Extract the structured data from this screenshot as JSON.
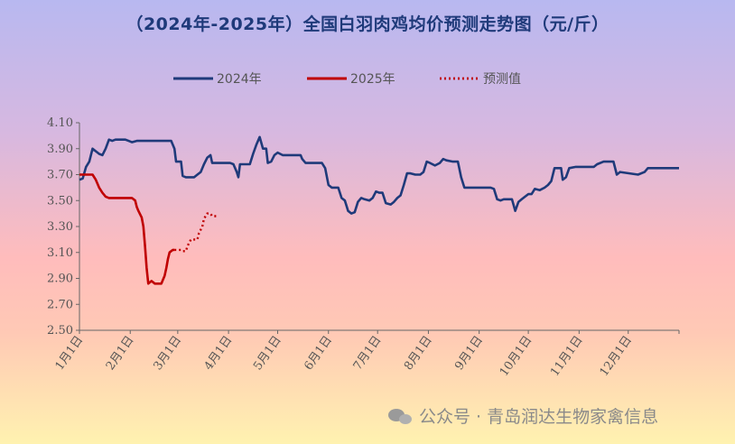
{
  "title": "（2024年-2025年）全国白羽肉鸡均价预测走势图（元/斤）",
  "watermark": "公众号 · 青岛润达生物家禽信息",
  "colors": {
    "s2024": "#1f3a7a",
    "s2025": "#c00000",
    "forecast": "#c00000"
  },
  "chart_data": {
    "type": "line",
    "title": "（2024年-2025年）全国白羽肉鸡均价预测走势图（元/斤）",
    "ylim": [
      2.5,
      4.1
    ],
    "yticks": [
      "4.10",
      "3.90",
      "3.70",
      "3.50",
      "3.30",
      "3.10",
      "2.90",
      "2.70",
      "2.50"
    ],
    "xticks": [
      "1月1日",
      "2月1日",
      "3月1日",
      "4月1日",
      "5月1日",
      "6月1日",
      "7月1日",
      "8月1日",
      "9月1日",
      "10月1日",
      "11月1日",
      "12月1日"
    ],
    "xlim_days": [
      0,
      366
    ],
    "legend_position": "top",
    "series": [
      {
        "name": "2024年",
        "style": "solid",
        "points": [
          [
            0,
            3.66
          ],
          [
            2,
            3.67
          ],
          [
            4,
            3.76
          ],
          [
            6,
            3.8
          ],
          [
            8,
            3.9
          ],
          [
            10,
            3.88
          ],
          [
            12,
            3.86
          ],
          [
            14,
            3.85
          ],
          [
            16,
            3.9
          ],
          [
            18,
            3.97
          ],
          [
            20,
            3.96
          ],
          [
            22,
            3.97
          ],
          [
            26,
            3.97
          ],
          [
            28,
            3.97
          ],
          [
            30,
            3.96
          ],
          [
            32,
            3.95
          ],
          [
            35,
            3.96
          ],
          [
            45,
            3.96
          ],
          [
            50,
            3.96
          ],
          [
            54,
            3.96
          ],
          [
            56,
            3.96
          ],
          [
            58,
            3.9
          ],
          [
            59,
            3.8
          ],
          [
            62,
            3.8
          ],
          [
            63,
            3.69
          ],
          [
            65,
            3.68
          ],
          [
            68,
            3.68
          ],
          [
            70,
            3.68
          ],
          [
            72,
            3.7
          ],
          [
            74,
            3.72
          ],
          [
            76,
            3.78
          ],
          [
            78,
            3.83
          ],
          [
            80,
            3.85
          ],
          [
            81,
            3.79
          ],
          [
            84,
            3.79
          ],
          [
            92,
            3.79
          ],
          [
            94,
            3.78
          ],
          [
            96,
            3.72
          ],
          [
            97,
            3.68
          ],
          [
            98,
            3.78
          ],
          [
            104,
            3.78
          ],
          [
            106,
            3.86
          ],
          [
            108,
            3.93
          ],
          [
            110,
            3.99
          ],
          [
            112,
            3.9
          ],
          [
            114,
            3.9
          ],
          [
            115,
            3.79
          ],
          [
            117,
            3.8
          ],
          [
            119,
            3.85
          ],
          [
            121,
            3.87
          ],
          [
            124,
            3.85
          ],
          [
            135,
            3.85
          ],
          [
            136,
            3.82
          ],
          [
            138,
            3.79
          ],
          [
            145,
            3.79
          ],
          [
            148,
            3.79
          ],
          [
            150,
            3.75
          ],
          [
            152,
            3.62
          ],
          [
            154,
            3.6
          ],
          [
            158,
            3.6
          ],
          [
            160,
            3.52
          ],
          [
            162,
            3.5
          ],
          [
            164,
            3.42
          ],
          [
            166,
            3.4
          ],
          [
            168,
            3.41
          ],
          [
            170,
            3.49
          ],
          [
            172,
            3.52
          ],
          [
            174,
            3.51
          ],
          [
            177,
            3.5
          ],
          [
            179,
            3.52
          ],
          [
            181,
            3.57
          ],
          [
            183,
            3.56
          ],
          [
            185,
            3.56
          ],
          [
            187,
            3.48
          ],
          [
            190,
            3.47
          ],
          [
            192,
            3.49
          ],
          [
            194,
            3.52
          ],
          [
            196,
            3.54
          ],
          [
            198,
            3.62
          ],
          [
            200,
            3.71
          ],
          [
            202,
            3.71
          ],
          [
            205,
            3.7
          ],
          [
            208,
            3.7
          ],
          [
            210,
            3.72
          ],
          [
            212,
            3.8
          ],
          [
            214,
            3.79
          ],
          [
            217,
            3.77
          ],
          [
            220,
            3.79
          ],
          [
            222,
            3.82
          ],
          [
            224,
            3.81
          ],
          [
            228,
            3.8
          ],
          [
            231,
            3.8
          ],
          [
            233,
            3.68
          ],
          [
            235,
            3.6
          ],
          [
            239,
            3.6
          ],
          [
            249,
            3.6
          ],
          [
            251,
            3.6
          ],
          [
            253,
            3.59
          ],
          [
            255,
            3.51
          ],
          [
            257,
            3.5
          ],
          [
            259,
            3.51
          ],
          [
            264,
            3.51
          ],
          [
            266,
            3.42
          ],
          [
            268,
            3.49
          ],
          [
            270,
            3.51
          ],
          [
            272,
            3.53
          ],
          [
            274,
            3.55
          ],
          [
            276,
            3.55
          ],
          [
            278,
            3.59
          ],
          [
            281,
            3.58
          ],
          [
            284,
            3.6
          ],
          [
            286,
            3.62
          ],
          [
            288,
            3.65
          ],
          [
            290,
            3.75
          ],
          [
            294,
            3.75
          ],
          [
            295,
            3.66
          ],
          [
            297,
            3.68
          ],
          [
            299,
            3.75
          ],
          [
            303,
            3.76
          ],
          [
            314,
            3.76
          ],
          [
            316,
            3.78
          ],
          [
            320,
            3.8
          ],
          [
            326,
            3.8
          ],
          [
            328,
            3.7
          ],
          [
            330,
            3.72
          ],
          [
            341,
            3.7
          ],
          [
            345,
            3.72
          ],
          [
            347,
            3.75
          ],
          [
            352,
            3.75
          ],
          [
            366,
            3.75
          ]
        ]
      },
      {
        "name": "2025年",
        "style": "solid",
        "points": [
          [
            0,
            3.7
          ],
          [
            2,
            3.7
          ],
          [
            8,
            3.7
          ],
          [
            10,
            3.66
          ],
          [
            12,
            3.6
          ],
          [
            14,
            3.56
          ],
          [
            16,
            3.53
          ],
          [
            18,
            3.52
          ],
          [
            20,
            3.52
          ],
          [
            32,
            3.52
          ],
          [
            34,
            3.5
          ],
          [
            35,
            3.45
          ],
          [
            36,
            3.42
          ],
          [
            38,
            3.37
          ],
          [
            39,
            3.3
          ],
          [
            40,
            3.15
          ],
          [
            41,
            2.98
          ],
          [
            42,
            2.86
          ],
          [
            44,
            2.88
          ],
          [
            46,
            2.86
          ],
          [
            49,
            2.86
          ],
          [
            50,
            2.86
          ],
          [
            52,
            2.92
          ],
          [
            53,
            2.98
          ],
          [
            54,
            3.05
          ],
          [
            55,
            3.1
          ],
          [
            57,
            3.12
          ],
          [
            58,
            3.12
          ]
        ]
      },
      {
        "name": "预测值",
        "style": "dotted",
        "points": [
          [
            58,
            3.12
          ],
          [
            62,
            3.12
          ],
          [
            63,
            3.11
          ],
          [
            65,
            3.11
          ],
          [
            66,
            3.15
          ],
          [
            68,
            3.2
          ],
          [
            70,
            3.2
          ],
          [
            72,
            3.2
          ],
          [
            73,
            3.25
          ],
          [
            75,
            3.3
          ],
          [
            76,
            3.36
          ],
          [
            78,
            3.4
          ],
          [
            80,
            3.4
          ],
          [
            81,
            3.38
          ],
          [
            84,
            3.38
          ]
        ]
      }
    ]
  }
}
